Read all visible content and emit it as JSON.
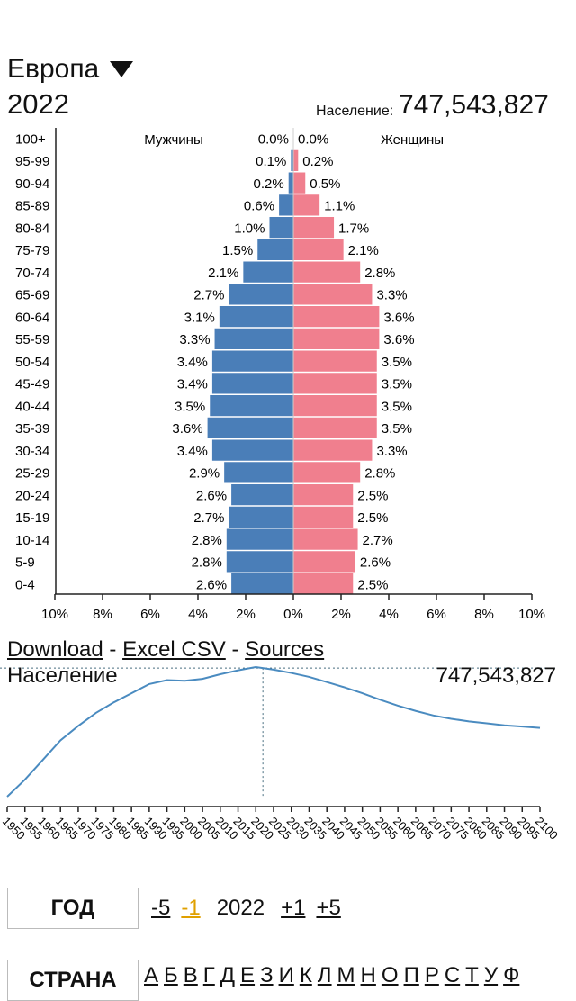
{
  "header": {
    "region": "Европа",
    "year": "2022",
    "population_label": "Население:",
    "population_value": "747,543,827"
  },
  "chart_data": [
    {
      "type": "bar",
      "orientation": "horizontal",
      "title": "",
      "categories": [
        "100+",
        "95-99",
        "90-94",
        "85-89",
        "80-84",
        "75-79",
        "70-74",
        "65-69",
        "60-64",
        "55-59",
        "50-54",
        "45-49",
        "40-44",
        "35-39",
        "30-34",
        "25-29",
        "20-24",
        "15-19",
        "10-14",
        "5-9",
        "0-4"
      ],
      "series": [
        {
          "name": "Мужчины",
          "color": "#4a7eb8",
          "values": [
            0.0,
            0.1,
            0.2,
            0.6,
            1.0,
            1.5,
            2.1,
            2.7,
            3.1,
            3.3,
            3.4,
            3.4,
            3.5,
            3.6,
            3.4,
            2.9,
            2.6,
            2.7,
            2.8,
            2.8,
            2.6
          ]
        },
        {
          "name": "Женщины",
          "color": "#f07f8e",
          "values": [
            0.0,
            0.2,
            0.5,
            1.1,
            1.7,
            2.1,
            2.8,
            3.3,
            3.6,
            3.6,
            3.5,
            3.5,
            3.5,
            3.5,
            3.3,
            2.8,
            2.5,
            2.5,
            2.7,
            2.6,
            2.5
          ]
        }
      ],
      "xticks": [
        "10%",
        "8%",
        "6%",
        "4%",
        "2%",
        "0%",
        "2%",
        "4%",
        "6%",
        "8%",
        "10%"
      ],
      "xlim": [
        -10,
        10
      ]
    },
    {
      "type": "line",
      "ylabel": "Население",
      "current_value": "747,543,827",
      "x": [
        1950,
        1955,
        1960,
        1965,
        1970,
        1975,
        1980,
        1985,
        1990,
        1995,
        2000,
        2005,
        2010,
        2015,
        2020,
        2025,
        2030,
        2035,
        2040,
        2045,
        2050,
        2055,
        2060,
        2065,
        2070,
        2075,
        2080,
        2085,
        2090,
        2095,
        2100
      ],
      "y": [
        549,
        575,
        605,
        635,
        657,
        677,
        693,
        707,
        721,
        727,
        726,
        729,
        736,
        742,
        747,
        743,
        738,
        732,
        724,
        716,
        707,
        697,
        688,
        680,
        673,
        668,
        664,
        661,
        658,
        656,
        654
      ],
      "marker_year": 2022,
      "xtick_labels": [
        "1950",
        "1955",
        "1960",
        "1965",
        "1970",
        "1975",
        "1980",
        "1985",
        "1990",
        "1995",
        "2000",
        "2005",
        "2010",
        "2015",
        "2020",
        "2025",
        "2030",
        "2035",
        "2040",
        "2045",
        "2050",
        "2055",
        "2060",
        "2065",
        "2070",
        "2075",
        "2080",
        "2085",
        "2090",
        "2095",
        "2100"
      ]
    }
  ],
  "links": {
    "download": "Download",
    "sep1": "-",
    "excel": "Excel CSV",
    "sep2": "-",
    "sources": "Sources"
  },
  "year_nav": {
    "label": "ГОД",
    "minus5": "-5",
    "minus1": "-1",
    "current": "2022",
    "plus1": "+1",
    "plus5": "+5"
  },
  "country_nav": {
    "label": "СТРАНА",
    "letters": [
      "А",
      "Б",
      "В",
      "Г",
      "Д",
      "Е",
      "З",
      "И",
      "К",
      "Л",
      "М",
      "Н",
      "О",
      "П",
      "Р",
      "С",
      "Т",
      "У",
      "Ф"
    ]
  }
}
